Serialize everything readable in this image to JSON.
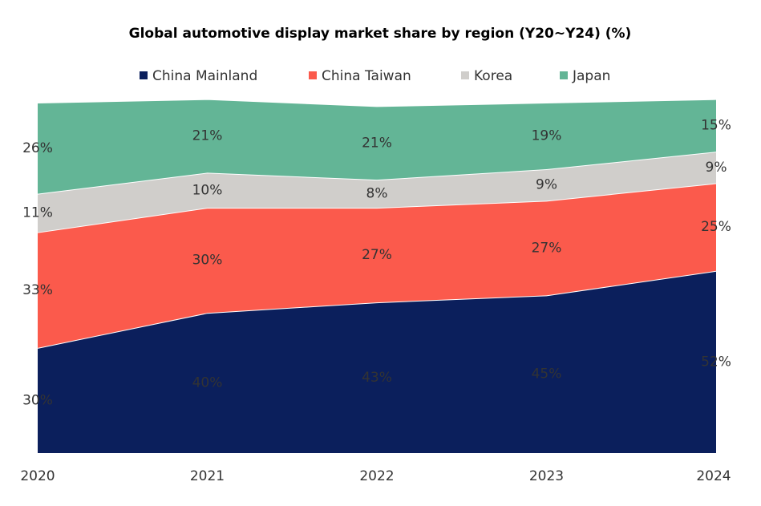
{
  "chart_data": {
    "type": "stacked_area",
    "title": "Global automotive display market share by region (Y20~Y24) (%)",
    "categories": [
      "2020",
      "2021",
      "2022",
      "2023",
      "2024"
    ],
    "ylim": [
      0,
      100
    ],
    "legend": "top",
    "series": [
      {
        "name": "China Mainland",
        "color": "#0b1f5c",
        "label_color": "#ffffff",
        "values": [
          30,
          40,
          43,
          45,
          52
        ],
        "value_labels": [
          "30%",
          "40%",
          "43%",
          "45%",
          "52%"
        ]
      },
      {
        "name": "China Taiwan",
        "color": "#fb5a4c",
        "label_color": "#ffffff",
        "values": [
          33,
          30,
          27,
          27,
          25
        ],
        "value_labels": [
          "33%",
          "30%",
          "27%",
          "27%",
          "25%"
        ]
      },
      {
        "name": "Korea",
        "color": "#d0cecb",
        "label_color": "#333333",
        "values": [
          11,
          10,
          8,
          9,
          9
        ],
        "value_labels": [
          "11%",
          "10%",
          "8%",
          "9%",
          "9%"
        ]
      },
      {
        "name": "Japan",
        "color": "#63b596",
        "label_color": "#333333",
        "values": [
          26,
          21,
          21,
          19,
          15
        ],
        "value_labels": [
          "26%",
          "21%",
          "21%",
          "19%",
          "15%"
        ]
      }
    ]
  }
}
